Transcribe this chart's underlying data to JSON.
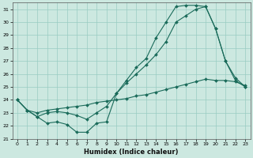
{
  "xlabel": "Humidex (Indice chaleur)",
  "xlim": [
    -0.5,
    23.5
  ],
  "ylim": [
    21,
    31.5
  ],
  "yticks": [
    21,
    22,
    23,
    24,
    25,
    26,
    27,
    28,
    29,
    30,
    31
  ],
  "xticks": [
    0,
    1,
    2,
    3,
    4,
    5,
    6,
    7,
    8,
    9,
    10,
    11,
    12,
    13,
    14,
    15,
    16,
    17,
    18,
    19,
    20,
    21,
    22,
    23
  ],
  "background_color": "#cce8e0",
  "grid_color": "#99ccc2",
  "line_color": "#1a6b5a",
  "curve1_x": [
    0,
    1,
    2,
    3,
    4,
    5,
    6,
    7,
    8,
    9,
    10,
    11,
    12,
    13,
    14,
    15,
    16,
    17,
    18,
    19,
    20,
    21,
    22,
    23
  ],
  "curve1_y": [
    24.0,
    23.2,
    22.7,
    22.2,
    22.3,
    22.1,
    21.5,
    21.5,
    22.2,
    22.3,
    24.5,
    25.5,
    26.5,
    27.2,
    28.8,
    30.0,
    31.2,
    31.3,
    31.3,
    31.2,
    29.5,
    27.0,
    25.7,
    25.0
  ],
  "curve2_x": [
    0,
    1,
    2,
    3,
    4,
    5,
    6,
    7,
    8,
    9,
    10,
    11,
    12,
    13,
    14,
    15,
    16,
    17,
    18,
    19,
    20,
    21,
    22,
    23
  ],
  "curve2_y": [
    24.0,
    23.2,
    22.7,
    23.0,
    23.1,
    23.0,
    22.8,
    22.5,
    23.0,
    23.5,
    24.5,
    25.3,
    26.0,
    26.7,
    27.5,
    28.5,
    30.0,
    30.5,
    31.0,
    31.2,
    29.5,
    27.0,
    25.5,
    25.0
  ],
  "curve3_x": [
    0,
    1,
    2,
    3,
    4,
    5,
    6,
    7,
    8,
    9,
    10,
    11,
    12,
    13,
    14,
    15,
    16,
    17,
    18,
    19,
    20,
    21,
    22,
    23
  ],
  "curve3_y": [
    24.0,
    23.2,
    23.0,
    23.2,
    23.3,
    23.4,
    23.5,
    23.6,
    23.8,
    23.9,
    24.0,
    24.1,
    24.3,
    24.4,
    24.6,
    24.8,
    25.0,
    25.2,
    25.4,
    25.6,
    25.5,
    25.5,
    25.4,
    25.1
  ]
}
